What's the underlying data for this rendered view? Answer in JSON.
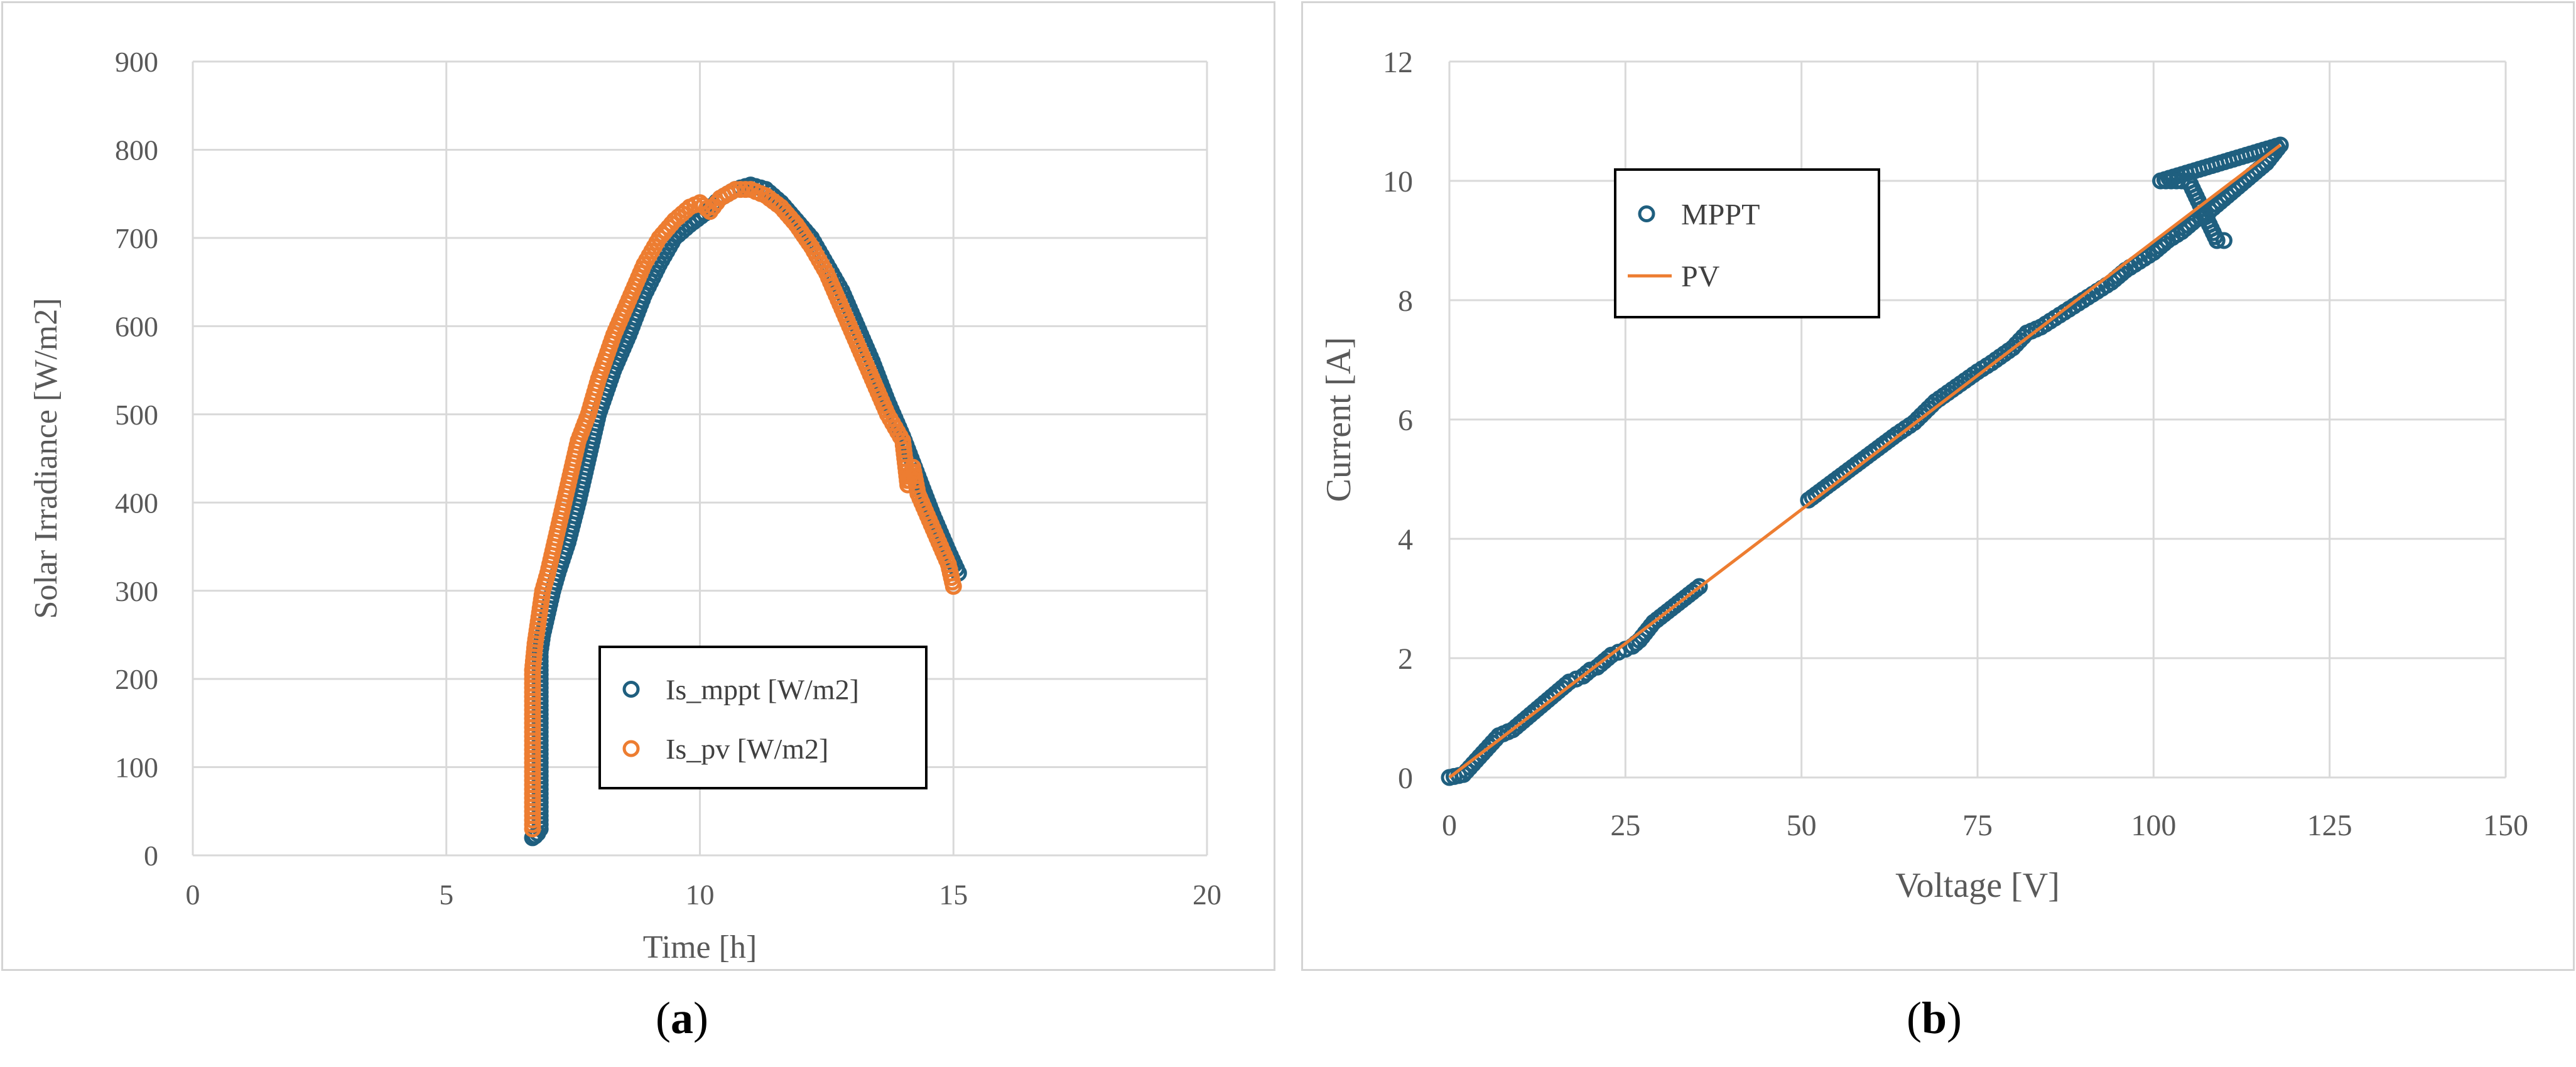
{
  "chart_data": [
    {
      "type": "scatter",
      "panel": "a",
      "title": "",
      "xlabel": "Time [h]",
      "ylabel": "Solar Irradiance [W/m2]",
      "xlim": [
        0,
        20
      ],
      "ylim": [
        0,
        900
      ],
      "xticks": [
        0,
        5,
        10,
        15,
        20
      ],
      "yticks": [
        0,
        100,
        200,
        300,
        400,
        500,
        600,
        700,
        800,
        900
      ],
      "grid": true,
      "legend_position": "lower-right",
      "series": [
        {
          "name": "Is_mppt [W/m2]",
          "color": "#1f5f7f",
          "x": [
            6.7,
            6.75,
            6.8,
            6.85,
            6.85,
            6.85,
            6.85,
            6.85,
            6.85,
            6.85,
            6.85,
            6.85,
            6.9,
            7.0,
            7.1,
            7.2,
            7.4,
            7.6,
            7.8,
            8.0,
            8.3,
            8.6,
            8.9,
            9.2,
            9.5,
            9.8,
            10.1,
            10.4,
            10.7,
            11.0,
            11.3,
            11.6,
            11.9,
            12.2,
            12.5,
            12.8,
            13.1,
            13.4,
            13.7,
            14.0,
            14.3,
            14.6,
            14.9,
            15.1
          ],
          "y": [
            20,
            22,
            25,
            30,
            40,
            60,
            90,
            120,
            150,
            180,
            210,
            230,
            250,
            275,
            300,
            320,
            355,
            400,
            450,
            500,
            550,
            590,
            635,
            670,
            700,
            715,
            728,
            745,
            755,
            760,
            755,
            740,
            720,
            700,
            670,
            640,
            600,
            560,
            515,
            475,
            430,
            385,
            345,
            320
          ]
        },
        {
          "name": "Is_pv [W/m2]",
          "color": "#ed7d31",
          "x": [
            6.7,
            6.7,
            6.7,
            6.7,
            6.7,
            6.7,
            6.7,
            6.7,
            6.7,
            6.7,
            6.75,
            6.8,
            6.9,
            7.0,
            7.2,
            7.4,
            7.6,
            7.8,
            8.0,
            8.3,
            8.6,
            8.9,
            9.2,
            9.5,
            9.8,
            10.0,
            10.2,
            10.4,
            10.7,
            11.0,
            11.3,
            11.6,
            11.9,
            12.2,
            12.5,
            12.8,
            13.1,
            13.4,
            13.7,
            14.0,
            14.1,
            14.2,
            14.3,
            14.6,
            14.9,
            15.0
          ],
          "y": [
            30,
            50,
            70,
            90,
            110,
            130,
            150,
            170,
            190,
            210,
            240,
            260,
            300,
            320,
            370,
            420,
            470,
            500,
            540,
            590,
            630,
            670,
            700,
            720,
            735,
            740,
            730,
            745,
            755,
            755,
            748,
            735,
            715,
            690,
            660,
            620,
            580,
            540,
            500,
            470,
            420,
            440,
            410,
            370,
            330,
            305
          ]
        }
      ]
    },
    {
      "type": "scatter",
      "panel": "b",
      "title": "",
      "xlabel": "Voltage [V]",
      "ylabel": "Current [A]",
      "xlim": [
        0,
        150
      ],
      "ylim": [
        0,
        12
      ],
      "xticks": [
        0,
        25,
        50,
        75,
        100,
        125,
        150
      ],
      "yticks": [
        0,
        2,
        4,
        6,
        8,
        10,
        12
      ],
      "grid": true,
      "legend_position": "top-left",
      "series": [
        {
          "name": "MPPT",
          "color": "#1f5f7f",
          "marker": "circle",
          "x": [
            0,
            2,
            7,
            9,
            10,
            11,
            12,
            13,
            14,
            15,
            16,
            17,
            18,
            19,
            20,
            21,
            22,
            23,
            24,
            25,
            26,
            27,
            29,
            35.5,
            51,
            63.5,
            66,
            69,
            72,
            75,
            77,
            80,
            82,
            84,
            86,
            88,
            90,
            92,
            94,
            96,
            98,
            100,
            102,
            104,
            106,
            108,
            110,
            112,
            114,
            116,
            118,
            101,
            104,
            105,
            109,
            110
          ],
          "y": [
            0,
            0.05,
            0.7,
            0.8,
            0.9,
            1.0,
            1.1,
            1.2,
            1.3,
            1.4,
            1.5,
            1.6,
            1.65,
            1.7,
            1.8,
            1.85,
            1.95,
            2.05,
            2.1,
            2.15,
            2.2,
            2.3,
            2.6,
            3.2,
            4.65,
            5.75,
            5.95,
            6.3,
            6.55,
            6.8,
            6.95,
            7.2,
            7.45,
            7.55,
            7.7,
            7.85,
            8.0,
            8.15,
            8.3,
            8.5,
            8.65,
            8.8,
            9.0,
            9.15,
            9.35,
            9.5,
            9.7,
            9.9,
            10.1,
            10.3,
            10.6,
            10.0,
            10.0,
            10.0,
            9.0,
            9.0
          ]
        },
        {
          "name": "PV",
          "color": "#ed7d31",
          "marker": "line",
          "x": [
            0,
            118
          ],
          "y": [
            0,
            10.6
          ]
        }
      ]
    }
  ],
  "captions": {
    "a": "a",
    "b": "b"
  }
}
